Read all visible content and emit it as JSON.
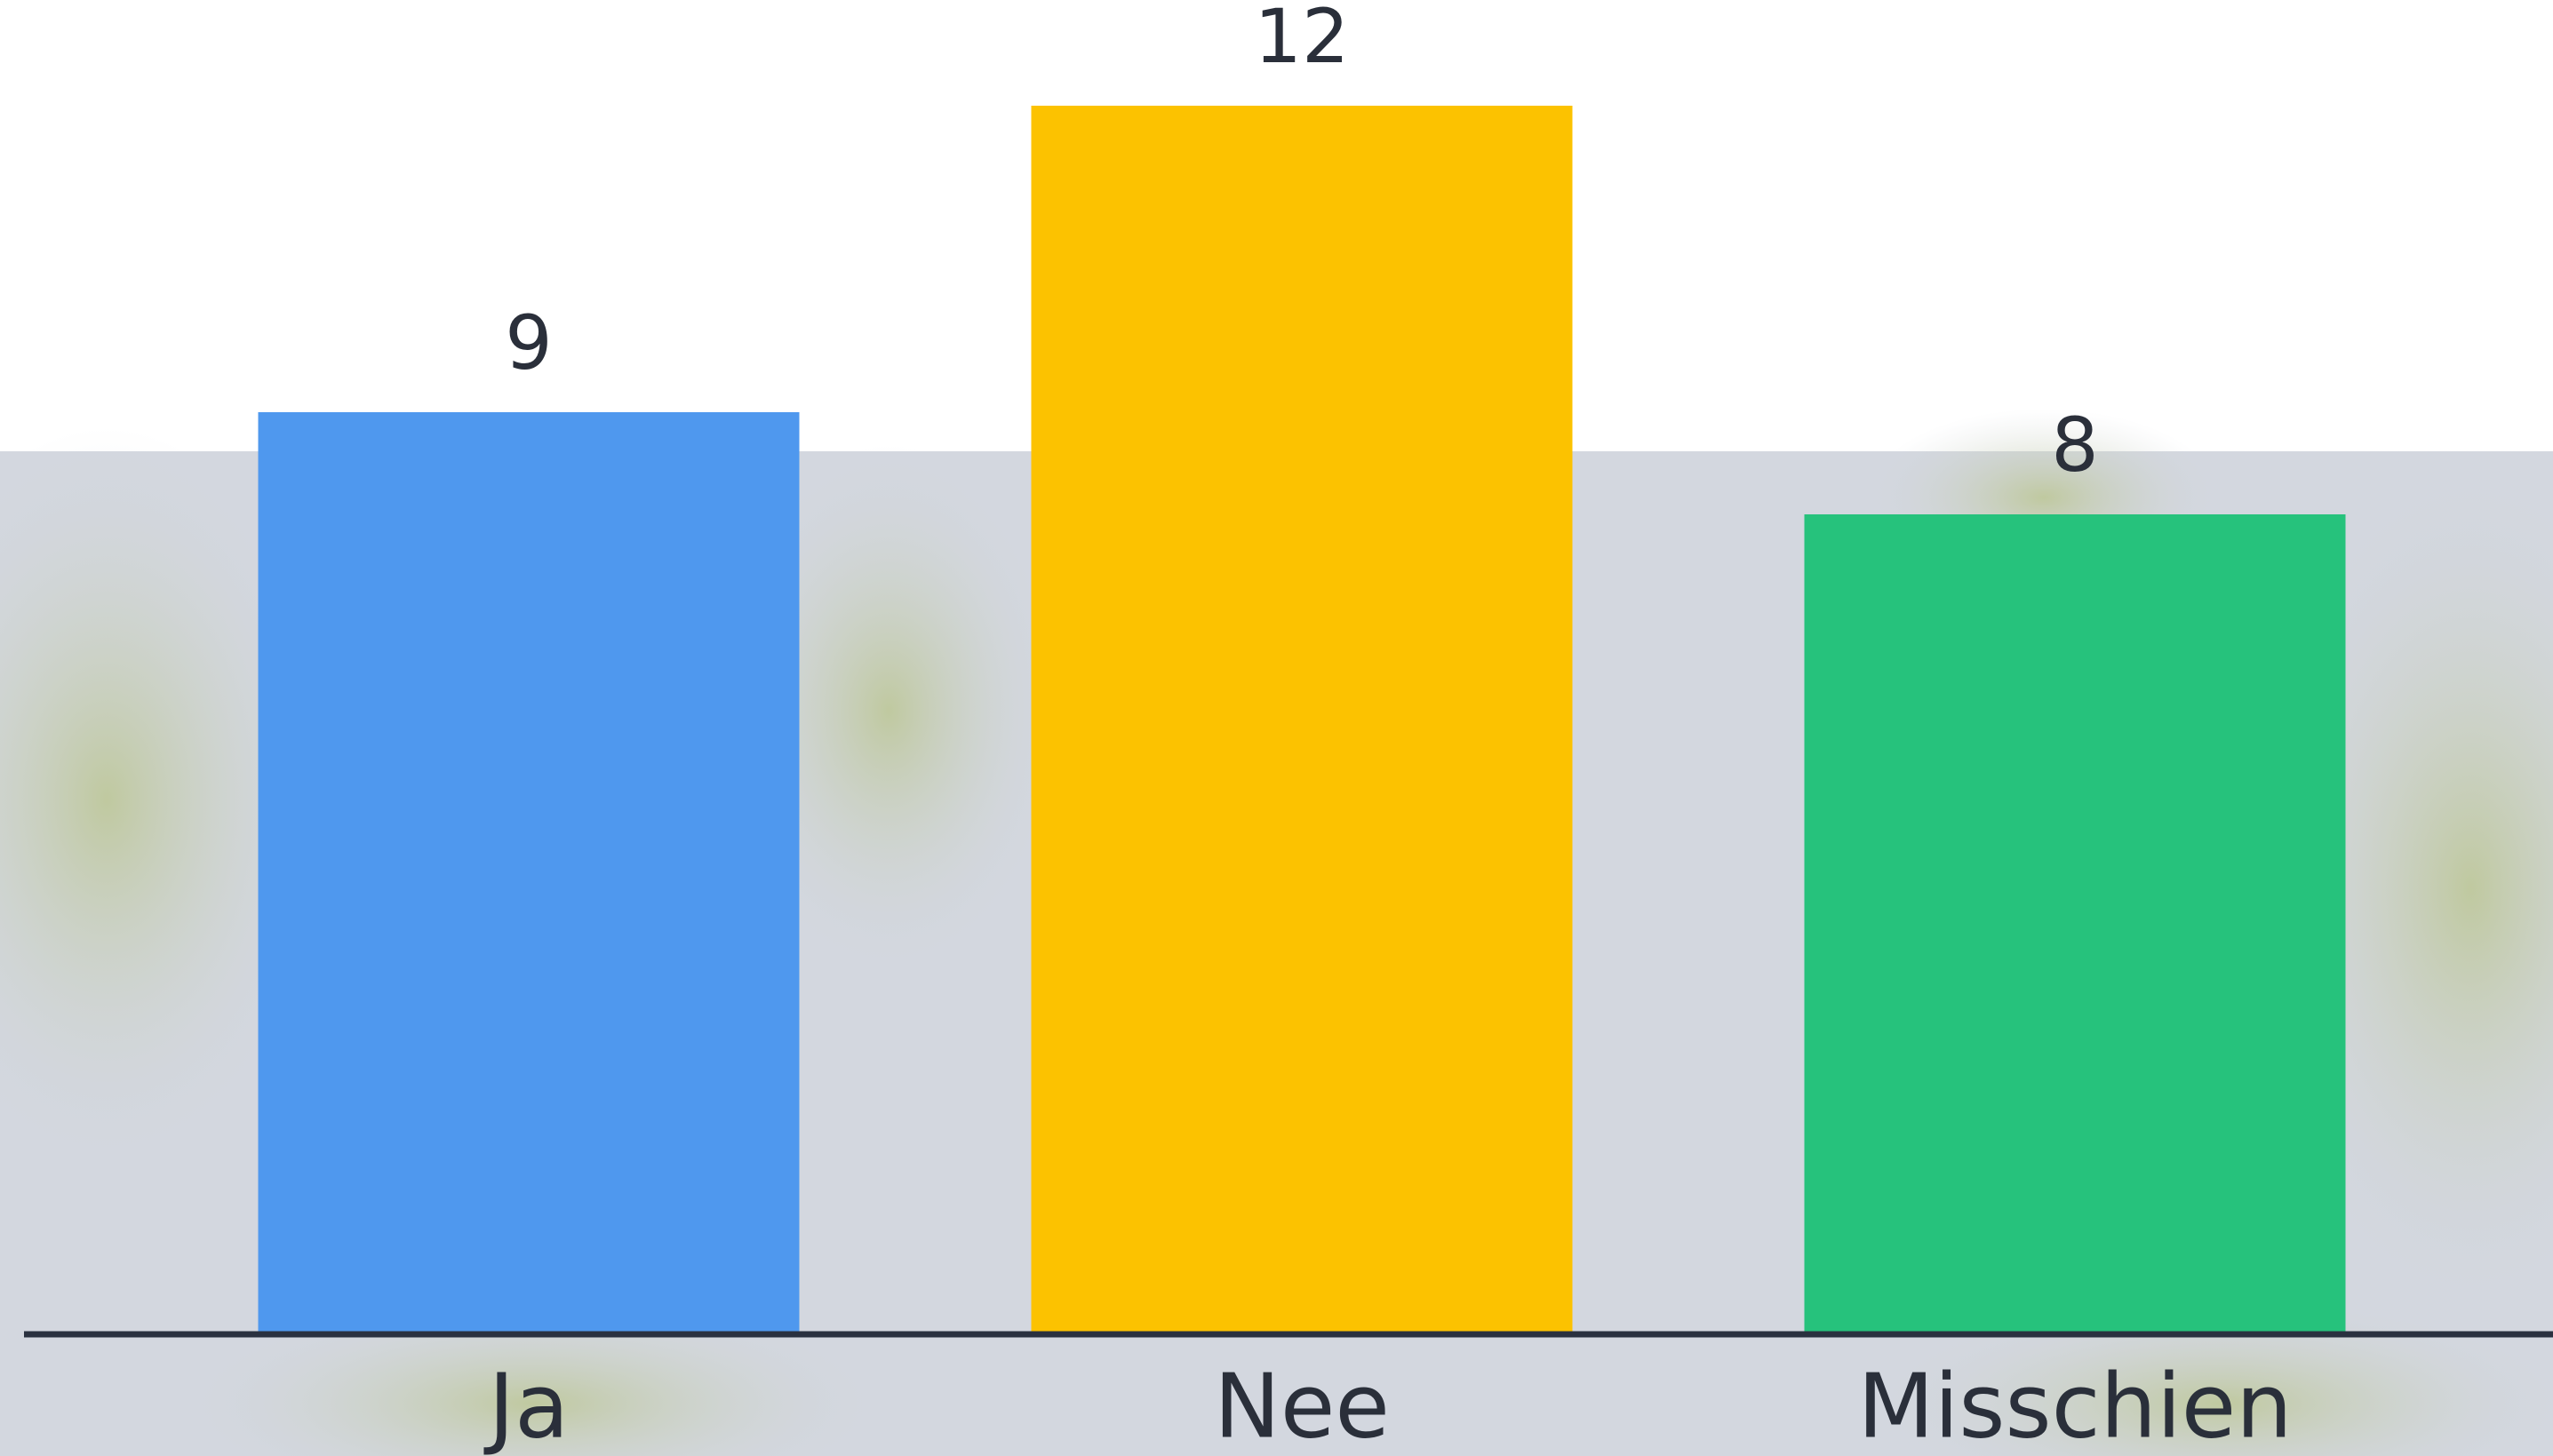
{
  "chart_data": {
    "type": "bar",
    "categories": [
      "Ja",
      "Nee",
      "Misschien"
    ],
    "values": [
      9,
      12,
      8
    ],
    "colors": [
      "#4f98ee",
      "#fcc200",
      "#26c27c"
    ]
  }
}
